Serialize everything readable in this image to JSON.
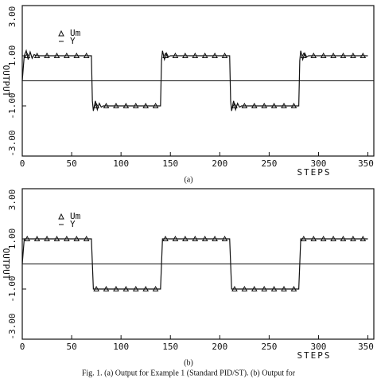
{
  "chart_data": [
    {
      "type": "line",
      "caption": "(a)",
      "x_label": "STEPS",
      "y_label": "OUTPUT",
      "xlim": [
        0,
        356
      ],
      "ylim": [
        -3,
        3
      ],
      "xticks": [
        0,
        50,
        100,
        150,
        200,
        250,
        300,
        350
      ],
      "yticks": [
        {
          "value": -3,
          "label": "-3.00"
        },
        {
          "value": -1,
          "label": "-1.00"
        },
        {
          "value": 1,
          "label": "1.00"
        },
        {
          "value": 3,
          "label": "3.00"
        }
      ],
      "zero_line": true,
      "legend": "upper left",
      "series": [
        {
          "name": "Um",
          "color": "#111",
          "marker": "triangle",
          "x": [
            5,
            15,
            25,
            35,
            45,
            55,
            65,
            75,
            85,
            95,
            105,
            115,
            125,
            135,
            145,
            155,
            165,
            175,
            185,
            195,
            205,
            215,
            225,
            235,
            245,
            255,
            265,
            275,
            285,
            295,
            305,
            315,
            325,
            335,
            345
          ],
          "values": [
            1,
            1,
            1,
            1,
            1,
            1,
            1,
            -1,
            -1,
            -1,
            -1,
            -1,
            -1,
            -1,
            1,
            1,
            1,
            1,
            1,
            1,
            1,
            -1,
            -1,
            -1,
            -1,
            -1,
            -1,
            -1,
            1,
            1,
            1,
            1,
            1,
            1,
            1
          ]
        },
        {
          "name": "Y",
          "color": "#111",
          "marker": "line",
          "x": [
            0,
            2,
            4,
            6,
            8,
            10,
            12,
            14,
            70,
            71,
            72,
            74,
            76,
            78,
            80,
            82,
            140,
            141,
            142,
            144,
            146,
            148,
            150,
            210,
            211,
            212,
            214,
            216,
            218,
            220,
            222,
            280,
            281,
            282,
            284,
            286,
            288,
            290,
            350
          ],
          "values": [
            0,
            1,
            1.2,
            0.85,
            1.15,
            0.9,
            1.05,
            1,
            1,
            -0.8,
            -1.2,
            -0.8,
            -1.15,
            -0.9,
            -1.05,
            -1,
            -1,
            0.8,
            1.2,
            0.85,
            1.1,
            0.95,
            1,
            1,
            -0.8,
            -1.2,
            -0.8,
            -1.15,
            -0.9,
            -1.05,
            -1,
            -1,
            0.8,
            1.2,
            0.85,
            1.1,
            0.95,
            1,
            1
          ]
        }
      ]
    },
    {
      "type": "line",
      "caption": "(b)",
      "x_label": "STEPS",
      "y_label": "OUTPUT",
      "xlim": [
        0,
        356
      ],
      "ylim": [
        -3,
        3
      ],
      "xticks": [
        0,
        50,
        100,
        150,
        200,
        250,
        300,
        350
      ],
      "yticks": [
        {
          "value": -3,
          "label": "-3.00"
        },
        {
          "value": -1,
          "label": "-1.00"
        },
        {
          "value": 1,
          "label": "1.00"
        },
        {
          "value": 3,
          "label": "3.00"
        }
      ],
      "zero_line": true,
      "legend": "upper left",
      "series": [
        {
          "name": "Um",
          "color": "#111",
          "marker": "triangle",
          "x": [
            5,
            15,
            25,
            35,
            45,
            55,
            65,
            75,
            85,
            95,
            105,
            115,
            125,
            135,
            145,
            155,
            165,
            175,
            185,
            195,
            205,
            215,
            225,
            235,
            245,
            255,
            265,
            275,
            285,
            295,
            305,
            315,
            325,
            335,
            345
          ],
          "values": [
            1,
            1,
            1,
            1,
            1,
            1,
            1,
            -1,
            -1,
            -1,
            -1,
            -1,
            -1,
            -1,
            1,
            1,
            1,
            1,
            1,
            1,
            1,
            -1,
            -1,
            -1,
            -1,
            -1,
            -1,
            -1,
            1,
            1,
            1,
            1,
            1,
            1,
            1
          ]
        },
        {
          "name": "Y",
          "color": "#111",
          "marker": "line",
          "x": [
            0,
            2,
            70,
            72,
            140,
            142,
            210,
            212,
            280,
            282,
            350
          ],
          "values": [
            0,
            1,
            1,
            -1,
            -1,
            1,
            1,
            -1,
            -1,
            1,
            1
          ]
        }
      ]
    }
  ],
  "figure_caption": "Fig. 1.   (a) Output for Example 1 (Standard PID/ST). (b) Output for"
}
